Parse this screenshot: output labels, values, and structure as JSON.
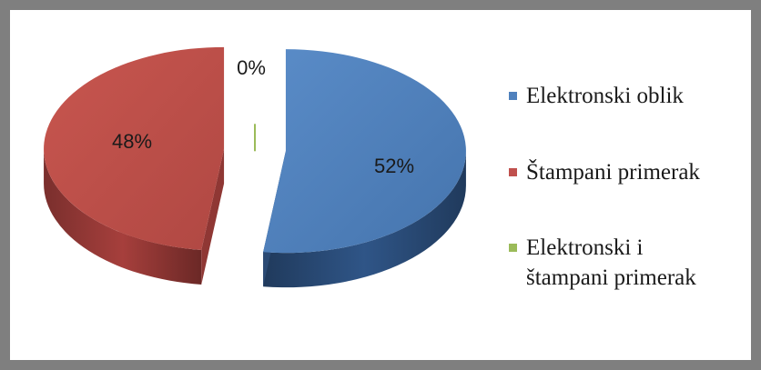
{
  "chart_data": {
    "type": "pie",
    "style": "3d-exploded",
    "categories": [
      "Elektronski oblik",
      "Štampani primerak",
      "Elektronski i štampani primerak"
    ],
    "values": [
      52,
      48,
      0
    ],
    "data_labels": [
      "52%",
      "48%",
      "0%"
    ],
    "colors": [
      "#4f81bd",
      "#c0504d",
      "#9bbb59"
    ],
    "title": "",
    "legend": {
      "position": "right",
      "lines": [
        [
          "Elektronski oblik"
        ],
        [
          "Štampani primerak"
        ],
        [
          "Elektronski i",
          "štampani primerak"
        ]
      ]
    }
  }
}
